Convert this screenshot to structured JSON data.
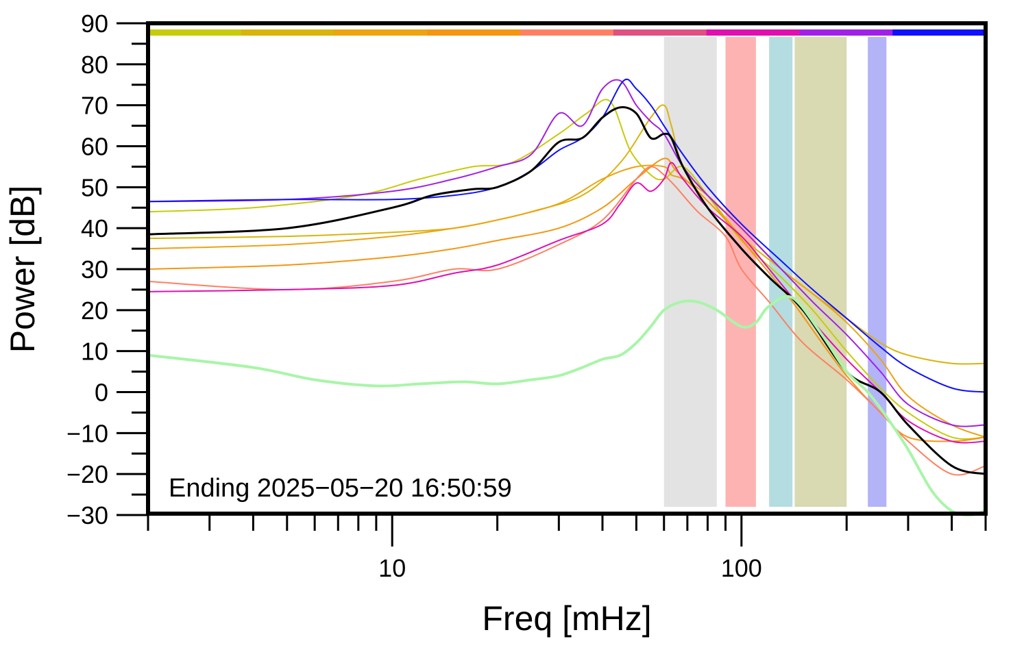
{
  "chart_data": {
    "type": "line",
    "xlabel": "Freq [mHz]",
    "ylabel": "Power [dB]",
    "x_scale": "log",
    "xlim": [
      2,
      500
    ],
    "ylim": [
      -30,
      90
    ],
    "x_tick_labels": [
      {
        "value": 10,
        "label": "10"
      },
      {
        "value": 100,
        "label": "100"
      }
    ],
    "y_ticks": [
      {
        "value": 90,
        "label": "90"
      },
      {
        "value": 80,
        "label": "80"
      },
      {
        "value": 70,
        "label": "70"
      },
      {
        "value": 60,
        "label": "60"
      },
      {
        "value": 50,
        "label": "50"
      },
      {
        "value": 40,
        "label": "40"
      },
      {
        "value": 30,
        "label": "30"
      },
      {
        "value": 20,
        "label": "20"
      },
      {
        "value": 10,
        "label": "10"
      },
      {
        "value": 0,
        "label": "0"
      },
      {
        "value": -10,
        "label": "−10"
      },
      {
        "value": -20,
        "label": "−20"
      },
      {
        "value": -30,
        "label": "−30"
      }
    ],
    "annotation": "Ending 2025−05−20 16:50:59",
    "grid": false,
    "bands": [
      {
        "x0": 60,
        "x1": 85,
        "color": "#e3e3e3"
      },
      {
        "x0": 90,
        "x1": 110,
        "color": "#feb3b3"
      },
      {
        "x0": 120,
        "x1": 140,
        "color": "#b3dde0"
      },
      {
        "x0": 142,
        "x1": 200,
        "color": "#d9d9b2"
      },
      {
        "x0": 230,
        "x1": 260,
        "color": "#b3b3f7"
      }
    ],
    "color_strip": [
      "#c6cc0a",
      "#d9b40a",
      "#eea310",
      "#f59510",
      "#ff7f62",
      "#e05080",
      "#e010b0",
      "#a020e8",
      "#1010ff"
    ],
    "series": [
      {
        "color": "#c6cc0a",
        "width": 2,
        "x": [
          2,
          4,
          8,
          12,
          17,
          22,
          30,
          36,
          42,
          48,
          55,
          60,
          68,
          80,
          100,
          130,
          160,
          200,
          250,
          300,
          400,
          500
        ],
        "y": [
          44,
          45,
          48,
          52,
          55,
          56,
          63,
          68,
          71,
          59,
          53,
          52,
          55,
          48,
          37,
          28,
          20,
          10,
          1,
          -5,
          -11,
          -11
        ]
      },
      {
        "color": "#d9b40a",
        "width": 2,
        "x": [
          2,
          5,
          10,
          15,
          20,
          25,
          35,
          45,
          55,
          60,
          63,
          68,
          80,
          100,
          130,
          160,
          200,
          250,
          300,
          400,
          500
        ],
        "y": [
          37.5,
          38,
          39,
          40,
          42,
          44,
          48,
          56,
          67,
          70,
          65,
          55,
          48,
          38,
          30,
          24,
          18,
          12,
          9,
          7,
          7
        ]
      },
      {
        "color": "#eea310",
        "width": 2,
        "x": [
          2,
          5,
          10,
          15,
          20,
          30,
          40,
          50,
          60,
          63,
          68,
          80,
          100,
          130,
          160,
          200,
          250,
          300,
          400,
          500
        ],
        "y": [
          35,
          36,
          38,
          40,
          42,
          46,
          52,
          55,
          55,
          53,
          52,
          48,
          40,
          30,
          24,
          17,
          8,
          -1,
          -8,
          -11
        ]
      },
      {
        "color": "#f59510",
        "width": 2,
        "x": [
          2,
          5,
          10,
          15,
          20,
          30,
          40,
          50,
          60,
          65,
          75,
          90,
          110,
          140,
          170,
          200,
          250,
          300,
          400,
          500
        ],
        "y": [
          30,
          31,
          33,
          35,
          37,
          40,
          45,
          52,
          57,
          54,
          49,
          42,
          33,
          22,
          12,
          4,
          -5,
          -11,
          -12,
          -11
        ]
      },
      {
        "color": "#ff7f62",
        "width": 2,
        "x": [
          2,
          5,
          10,
          15,
          20,
          30,
          40,
          50,
          55,
          60,
          65,
          75,
          90,
          100,
          120,
          150,
          200,
          250,
          300,
          400,
          500
        ],
        "y": [
          27,
          25,
          27,
          30,
          30,
          36,
          42,
          52,
          55,
          53,
          50,
          44,
          38,
          30,
          22,
          12,
          3,
          -5,
          -12,
          -20,
          -18
        ]
      },
      {
        "color": "#e010b0",
        "width": 2,
        "x": [
          2,
          5,
          10,
          15,
          20,
          30,
          40,
          45,
          50,
          55,
          60,
          63,
          68,
          80,
          100,
          120,
          150,
          200,
          250,
          300,
          400,
          500
        ],
        "y": [
          24.5,
          25,
          26,
          29,
          31,
          37,
          41,
          46,
          51,
          49,
          52,
          56,
          52,
          45,
          38,
          30,
          20,
          8,
          0,
          -7,
          -12,
          -12
        ]
      },
      {
        "color": "#a020e8",
        "width": 2,
        "x": [
          2,
          5,
          10,
          15,
          20,
          25,
          30,
          35,
          40,
          45,
          50,
          55,
          60,
          68,
          80,
          100,
          130,
          160,
          200,
          250,
          300,
          400,
          500
        ],
        "y": [
          46.5,
          47,
          49,
          52,
          55,
          58,
          68,
          65,
          74,
          76,
          70,
          66,
          63,
          55,
          48,
          40,
          30,
          22,
          14,
          5,
          -3,
          -8,
          -8
        ]
      },
      {
        "color": "#1010ff",
        "width": 2,
        "x": [
          2,
          5,
          10,
          15,
          20,
          25,
          30,
          35,
          40,
          46,
          50,
          55,
          60,
          68,
          80,
          100,
          130,
          160,
          200,
          250,
          300,
          400,
          500
        ],
        "y": [
          46.5,
          47,
          47,
          48,
          50,
          54,
          59,
          62,
          67,
          76,
          74,
          70,
          65,
          58,
          50,
          41,
          32,
          25,
          18,
          11,
          6,
          1,
          0
        ]
      },
      {
        "color": "#000000",
        "width": 3,
        "x": [
          2,
          5,
          10,
          13,
          17,
          20,
          25,
          30,
          35,
          40,
          45,
          50,
          55,
          60,
          63,
          68,
          80,
          100,
          120,
          150,
          200,
          250,
          300,
          400,
          500
        ],
        "y": [
          38.5,
          40,
          45,
          48,
          49.5,
          50,
          54,
          61,
          62,
          67,
          69.5,
          68,
          62,
          63,
          62,
          55,
          45,
          35,
          28,
          20,
          5,
          0,
          -8,
          -18,
          -20
        ]
      },
      {
        "color": "#a8f5a8",
        "width": 4,
        "x": [
          2,
          4,
          6,
          9,
          12,
          16,
          20,
          25,
          30,
          35,
          40,
          45,
          50,
          55,
          60,
          67,
          75,
          85,
          100,
          110,
          120,
          140,
          170,
          200,
          230,
          260,
          300,
          350,
          400,
          450,
          500
        ],
        "y": [
          9,
          6,
          3,
          1.5,
          2,
          2.5,
          2,
          3,
          4,
          6,
          8,
          9,
          12,
          16,
          20,
          22,
          22,
          20,
          16,
          17,
          21,
          23,
          14,
          5,
          0,
          -6,
          -14,
          -24,
          -29,
          -30,
          -29
        ]
      }
    ]
  }
}
